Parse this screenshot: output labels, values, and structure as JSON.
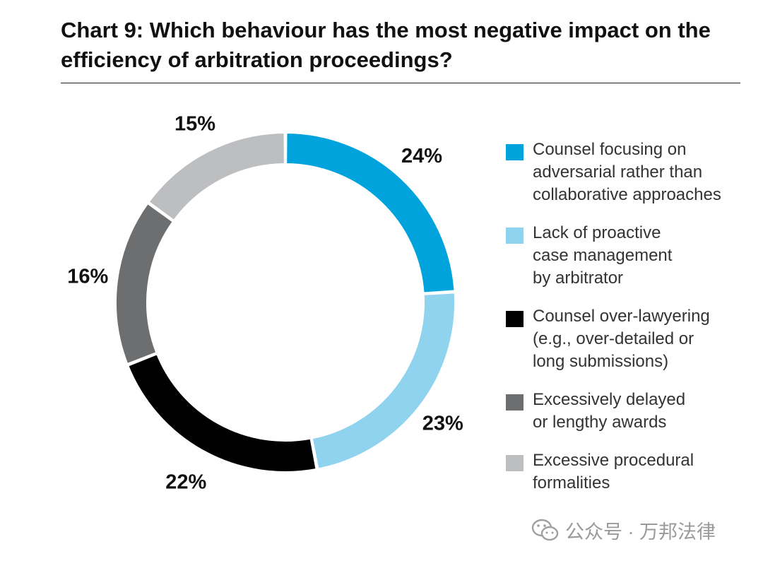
{
  "chart_data": {
    "type": "pie",
    "title": "Chart 9: Which behaviour has the most negative impact on the efficiency of arbitration proceedings?",
    "categories": [
      "Counsel focusing on\nadversarial rather than\ncollaborative approaches",
      "Lack of proactive\ncase management\nby arbitrator",
      "Counsel over-lawyering\n(e.g., over-detailed or\nlong submissions)",
      "Excessively delayed\nor lengthy awards",
      "Excessive procedural\nformalities"
    ],
    "values": [
      24,
      23,
      22,
      16,
      15
    ],
    "value_labels": [
      "24%",
      "23%",
      "22%",
      "16%",
      "15%"
    ],
    "colors": [
      "#00a3dc",
      "#8fd3ef",
      "#000000",
      "#6d6e70",
      "#bdbec0"
    ],
    "legend_position": "right",
    "style": "donut"
  },
  "watermark": {
    "text": "公众号 · 万邦法律",
    "icon": "wechat-icon"
  }
}
